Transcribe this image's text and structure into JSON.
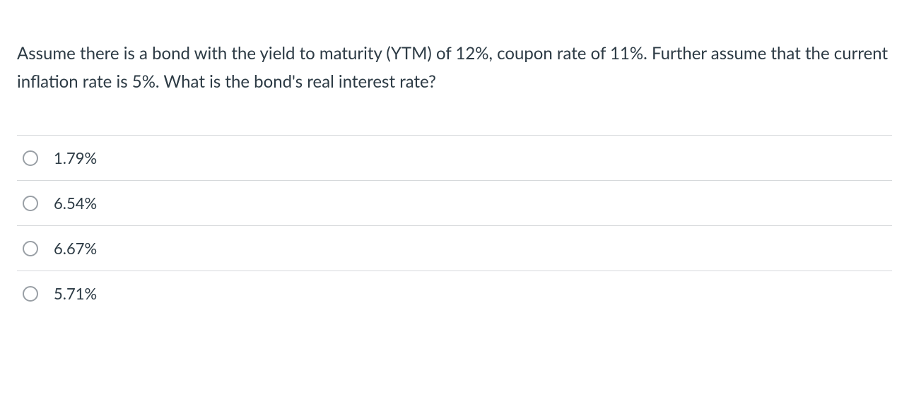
{
  "question": "Assume there is a bond with the yield to maturity (YTM) of 12%, coupon rate of 11%. Further assume that the current inflation rate is 5%. What is the bond's real interest rate?",
  "options": [
    {
      "label": "1.79%"
    },
    {
      "label": "6.54%"
    },
    {
      "label": "6.67%"
    },
    {
      "label": "5.71%"
    }
  ],
  "colors": {
    "text": "#2d3b45",
    "border": "#d6d9db",
    "radio_border": "#999fa5",
    "background": "#ffffff"
  }
}
